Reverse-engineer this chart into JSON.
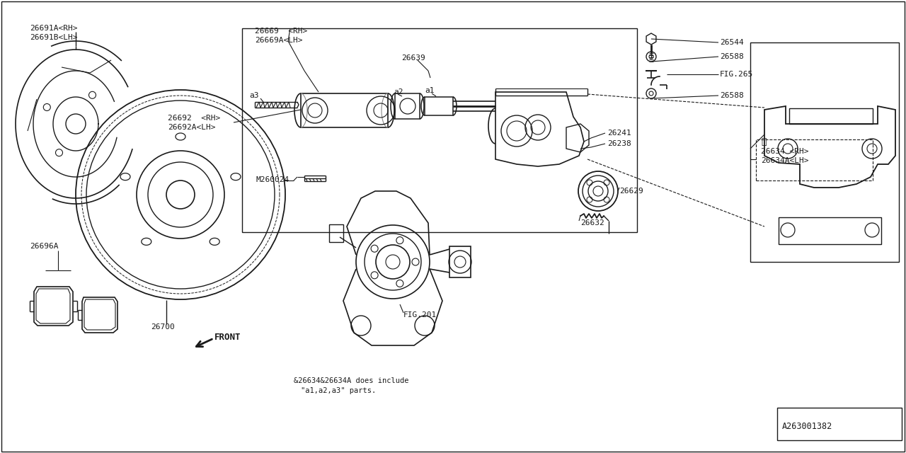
{
  "bg": "#ffffff",
  "lc": "#1a1a1a",
  "parts": {
    "26691A": "26691A<RH>",
    "26691B": "26691B<LH>",
    "26692": "26692  <RH>",
    "26692A": "26692A<LH>",
    "26700": "26700",
    "26696A": "26696A",
    "26669": "26669  <RH>",
    "26669A": "26669A<LH>",
    "26639": "26639",
    "26241": "26241",
    "26238": "26238",
    "26634": "26634 <RH>",
    "26634A": "26634A<LH>",
    "26629": "26629",
    "26632": "26632",
    "M260024": "M260024",
    "FIG201": "FIG.201",
    "26544": "26544",
    "26588a": "26588",
    "FIG265": "FIG.265",
    "26588b": "26588",
    "a1": "a1",
    "a2": "a2",
    "a3": "a3",
    "note1": "&26634&26634A does include",
    "note2": "\"a1,a2,a3\" parts.",
    "diag_id": "A263001382",
    "FRONT": "FRONT"
  }
}
